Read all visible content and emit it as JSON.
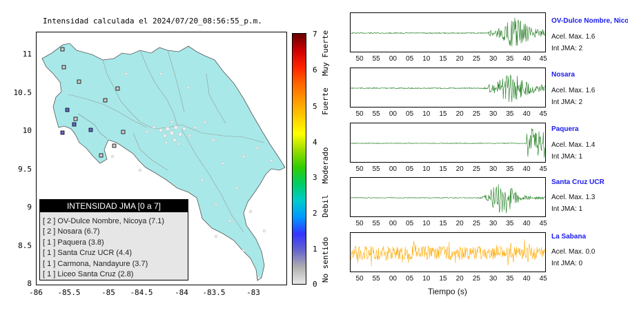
{
  "map": {
    "title": "Intensidad calculada el 2024/07/20_08:56:55_p.m.",
    "y_ticks": [
      "11",
      "10.5",
      "10",
      "9.5",
      "9",
      "8.5",
      "8"
    ],
    "x_ticks": [
      "-86",
      "-85.5",
      "-85",
      "-84.5",
      "-84",
      "-83.5",
      "-83"
    ],
    "land_color": "#a8e8e8",
    "station_markers": [
      {
        "intensity": 2,
        "color": "#6666cc"
      },
      {
        "intensity": 2,
        "color": "#6666cc"
      },
      {
        "intensity": 1,
        "color": "#cccccc"
      },
      {
        "intensity": 1,
        "color": "#cccccc"
      },
      {
        "intensity": 1,
        "color": "#cccccc"
      },
      {
        "intensity": 1,
        "color": "#cccccc"
      }
    ]
  },
  "legend": {
    "header": "INTENSIDAD JMA [0 a 7]",
    "rows": [
      "[ 2 ]  OV-Dulce Nombre, Nicoya (7.1)",
      "[ 2 ]  Nosara (6.7)",
      "[ 1 ]  Paquera (3.8)",
      "[ 1 ]  Santa Cruz UCR (4.4)",
      "[ 1 ]  Carmona, Nandayure (3.7)",
      "[ 1 ]  Liceo Santa Cruz (2.8)"
    ]
  },
  "colorbar": {
    "ticks": [
      "7",
      "6",
      "5",
      "4",
      "3",
      "2",
      "1",
      "0"
    ],
    "categories": [
      "Muy Fuerte",
      "Fuerte",
      "Moderado",
      "Debil",
      "No sentido"
    ],
    "colors": [
      "#e8e8e8",
      "#b0b0b0",
      "#6666cc",
      "#3333ff",
      "#0099ff",
      "#00cccc",
      "#00cc66",
      "#33cc00",
      "#99dd00",
      "#ffff00",
      "#ffcc00",
      "#ff9900",
      "#ff6600",
      "#ff2200",
      "#cc0000",
      "#660000"
    ]
  },
  "seismograms": {
    "time_ticks": [
      "50",
      "55",
      "00",
      "05",
      "10",
      "15",
      "20",
      "25",
      "30",
      "35",
      "40",
      "45"
    ],
    "xaxis_title": "Tiempo (s)",
    "stations": [
      {
        "name": "OV-Dulce Nombre, Nicoya",
        "accel": "Acel. Max. 1.6",
        "intensity": "Int JMA: 2",
        "color": "#1a7a1a"
      },
      {
        "name": "Nosara",
        "accel": "Acel. Max. 1.6",
        "intensity": "Int JMA: 2",
        "color": "#1a7a1a"
      },
      {
        "name": "Paquera",
        "accel": "Acel. Max. 1.4",
        "intensity": "Int JMA: 1",
        "color": "#1a7a1a"
      },
      {
        "name": "Santa Cruz UCR",
        "accel": "Acel. Max. 1.3",
        "intensity": "Int JMA: 1",
        "color": "#1a7a1a"
      },
      {
        "name": "La Sabana",
        "accel": "Acel. Max. 0.0",
        "intensity": "Int JMA: 0",
        "color": "#ffaa00"
      }
    ]
  }
}
